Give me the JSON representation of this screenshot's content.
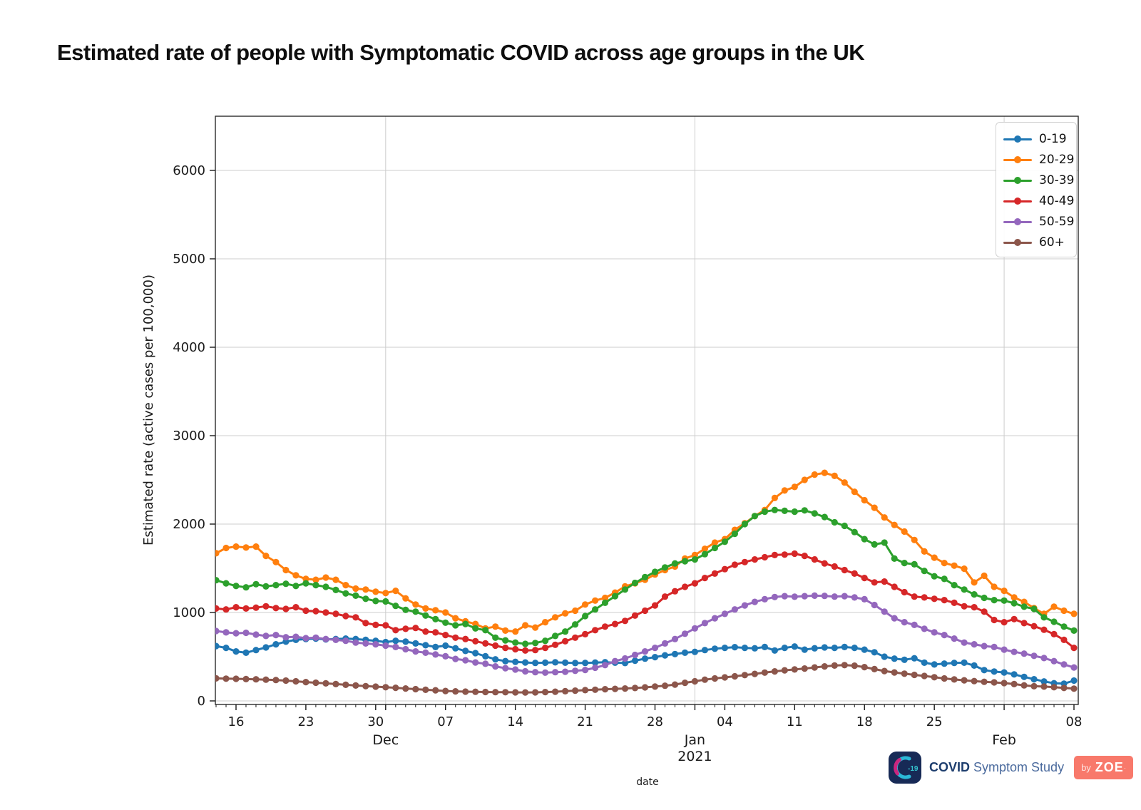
{
  "title": "Estimated rate of people with Symptomatic COVID across age groups in the UK",
  "footer": {
    "icon_text": "-19",
    "brand_bold": "COVID",
    "brand_rest": " Symptom Study",
    "badge_by": "by",
    "badge_zoe": "ZOE",
    "badge_color": "#f8796b",
    "icon_bg": "#172a56"
  },
  "chart_data": {
    "type": "line",
    "title": "Estimated rate of people with Symptomatic COVID across age groups in the UK",
    "xlabel": "date",
    "ylabel": "Estimated rate (active cases per 100,000)",
    "x_start_date": "2020-11-14",
    "x_end_date": "2021-02-08",
    "x_unit": "day",
    "ylim": [
      0,
      6600
    ],
    "grid": true,
    "legend_position": "upper right",
    "yticks": [
      0,
      1000,
      2000,
      3000,
      4000,
      5000,
      6000
    ],
    "xticks_weekly": [
      {
        "day": 2,
        "label": "16"
      },
      {
        "day": 9,
        "label": "23"
      },
      {
        "day": 16,
        "label": "30"
      },
      {
        "day": 23,
        "label": "07"
      },
      {
        "day": 30,
        "label": "14"
      },
      {
        "day": 37,
        "label": "21"
      },
      {
        "day": 44,
        "label": "28"
      },
      {
        "day": 51,
        "label": "04"
      },
      {
        "day": 58,
        "label": "11"
      },
      {
        "day": 65,
        "label": "18"
      },
      {
        "day": 72,
        "label": "25"
      },
      {
        "day": 86,
        "label": "08"
      }
    ],
    "xticks_months": [
      {
        "day": 17,
        "label": "Dec",
        "sublabel": ""
      },
      {
        "day": 48,
        "label": "Jan",
        "sublabel": "2021"
      },
      {
        "day": 79,
        "label": "Feb",
        "sublabel": ""
      }
    ],
    "series": [
      {
        "name": "0-19",
        "color": "#1f77b4",
        "values": [
          620,
          600,
          560,
          545,
          575,
          605,
          640,
          670,
          690,
          700,
          705,
          695,
          700,
          705,
          700,
          690,
          680,
          665,
          680,
          670,
          650,
          630,
          610,
          625,
          595,
          565,
          540,
          505,
          470,
          450,
          442,
          435,
          430,
          432,
          436,
          432,
          428,
          430,
          434,
          438,
          432,
          428,
          455,
          478,
          495,
          515,
          530,
          545,
          555,
          575,
          590,
          600,
          608,
          600,
          595,
          610,
          570,
          600,
          615,
          580,
          595,
          605,
          600,
          610,
          600,
          580,
          550,
          500,
          478,
          465,
          482,
          432,
          412,
          422,
          430,
          432,
          400,
          348,
          332,
          322,
          300,
          272,
          245,
          220,
          200,
          195,
          230
        ]
      },
      {
        "name": "20-29",
        "color": "#ff7f0e",
        "values": [
          1670,
          1730,
          1745,
          1735,
          1745,
          1640,
          1570,
          1480,
          1420,
          1380,
          1370,
          1395,
          1370,
          1310,
          1270,
          1260,
          1235,
          1220,
          1245,
          1160,
          1090,
          1045,
          1025,
          1000,
          935,
          900,
          870,
          820,
          840,
          795,
          785,
          855,
          830,
          890,
          945,
          990,
          1020,
          1090,
          1135,
          1165,
          1225,
          1295,
          1330,
          1370,
          1430,
          1480,
          1520,
          1610,
          1650,
          1720,
          1790,
          1830,
          1935,
          2010,
          2090,
          2160,
          2295,
          2380,
          2420,
          2500,
          2560,
          2580,
          2545,
          2470,
          2365,
          2270,
          2185,
          2075,
          1990,
          1915,
          1820,
          1690,
          1620,
          1560,
          1530,
          1495,
          1340,
          1415,
          1290,
          1245,
          1170,
          1120,
          1050,
          985,
          1065,
          1020,
          985
        ]
      },
      {
        "name": "30-39",
        "color": "#2ca02c",
        "values": [
          1365,
          1330,
          1300,
          1285,
          1320,
          1295,
          1310,
          1325,
          1300,
          1330,
          1310,
          1290,
          1255,
          1215,
          1190,
          1155,
          1130,
          1125,
          1075,
          1030,
          1010,
          965,
          925,
          885,
          855,
          870,
          820,
          800,
          715,
          685,
          660,
          645,
          655,
          680,
          735,
          785,
          865,
          960,
          1035,
          1110,
          1185,
          1260,
          1335,
          1400,
          1460,
          1510,
          1555,
          1580,
          1600,
          1660,
          1730,
          1800,
          1890,
          2000,
          2090,
          2140,
          2160,
          2150,
          2140,
          2155,
          2120,
          2080,
          2020,
          1980,
          1910,
          1830,
          1770,
          1790,
          1610,
          1560,
          1545,
          1470,
          1410,
          1380,
          1310,
          1260,
          1205,
          1165,
          1140,
          1135,
          1105,
          1065,
          1040,
          945,
          895,
          840,
          795
        ]
      },
      {
        "name": "40-49",
        "color": "#d62728",
        "values": [
          1045,
          1035,
          1060,
          1045,
          1055,
          1070,
          1050,
          1040,
          1060,
          1020,
          1015,
          1000,
          985,
          960,
          945,
          880,
          860,
          855,
          800,
          815,
          825,
          785,
          775,
          745,
          715,
          700,
          675,
          650,
          625,
          600,
          585,
          570,
          575,
          600,
          635,
          675,
          715,
          755,
          800,
          840,
          870,
          905,
          965,
          1020,
          1080,
          1180,
          1240,
          1290,
          1330,
          1390,
          1440,
          1490,
          1540,
          1570,
          1600,
          1625,
          1650,
          1655,
          1665,
          1640,
          1600,
          1555,
          1520,
          1480,
          1440,
          1390,
          1340,
          1350,
          1290,
          1230,
          1180,
          1170,
          1155,
          1140,
          1110,
          1070,
          1060,
          1010,
          915,
          890,
          925,
          880,
          845,
          805,
          755,
          690,
          600
        ]
      },
      {
        "name": "50-59",
        "color": "#9467bd",
        "values": [
          790,
          775,
          765,
          770,
          750,
          735,
          745,
          720,
          725,
          710,
          715,
          700,
          690,
          680,
          660,
          650,
          640,
          625,
          610,
          585,
          560,
          545,
          525,
          505,
          475,
          460,
          435,
          420,
          390,
          370,
          355,
          335,
          325,
          320,
          325,
          330,
          340,
          350,
          375,
          405,
          450,
          480,
          520,
          560,
          600,
          650,
          700,
          760,
          820,
          880,
          935,
          985,
          1035,
          1080,
          1120,
          1150,
          1175,
          1185,
          1178,
          1185,
          1190,
          1188,
          1180,
          1185,
          1170,
          1150,
          1085,
          1010,
          935,
          890,
          860,
          815,
          775,
          745,
          705,
          660,
          640,
          620,
          610,
          580,
          555,
          535,
          510,
          485,
          450,
          412,
          378
        ]
      },
      {
        "name": "60+",
        "color": "#8c564b",
        "values": [
          255,
          252,
          250,
          247,
          244,
          240,
          236,
          230,
          222,
          213,
          206,
          198,
          190,
          182,
          174,
          167,
          161,
          155,
          148,
          140,
          133,
          126,
          120,
          112,
          108,
          105,
          103,
          101,
          99,
          98,
          97,
          96,
          97,
          100,
          104,
          110,
          116,
          122,
          127,
          132,
          136,
          140,
          146,
          153,
          162,
          172,
          185,
          205,
          222,
          240,
          254,
          266,
          278,
          292,
          306,
          320,
          334,
          346,
          356,
          366,
          378,
          390,
          400,
          405,
          398,
          382,
          360,
          338,
          322,
          308,
          294,
          282,
          268,
          254,
          243,
          233,
          224,
          216,
          210,
          202,
          190,
          176,
          166,
          162,
          155,
          147,
          139
        ]
      }
    ],
    "style": {
      "grid_color": "#cccccc",
      "spine_color": "#2b2b2b",
      "tick_color": "#1a1a1a",
      "marker_radius": 4.6,
      "line_width": 3
    }
  }
}
